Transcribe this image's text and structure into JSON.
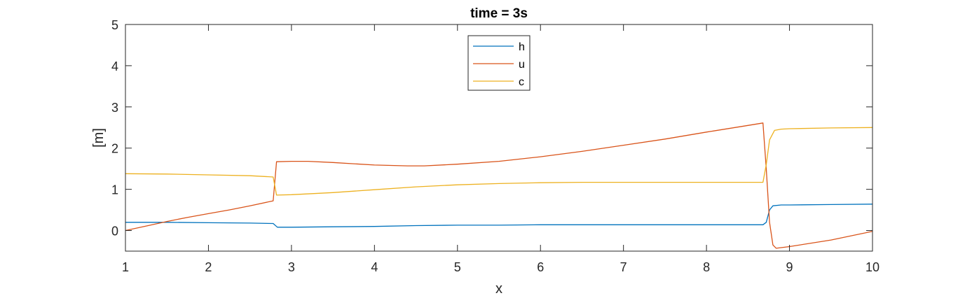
{
  "chart_data": {
    "type": "line",
    "title": "time = 3s",
    "xlabel": "x",
    "ylabel": "[m]",
    "xlim": [
      1,
      10
    ],
    "ylim": [
      -0.5,
      5
    ],
    "xticks": [
      1,
      2,
      3,
      4,
      5,
      6,
      7,
      8,
      9,
      10
    ],
    "yticks": [
      0,
      1,
      2,
      3,
      4,
      5
    ],
    "grid": false,
    "legend_position": "top-center",
    "series": [
      {
        "name": "h",
        "color": "#0072BD",
        "points": [
          [
            1,
            0.2
          ],
          [
            1.5,
            0.2
          ],
          [
            2,
            0.19
          ],
          [
            2.5,
            0.18
          ],
          [
            2.78,
            0.17
          ],
          [
            2.83,
            0.08
          ],
          [
            3,
            0.08
          ],
          [
            3.5,
            0.09
          ],
          [
            4,
            0.1
          ],
          [
            4.5,
            0.12
          ],
          [
            5,
            0.13
          ],
          [
            5.5,
            0.13
          ],
          [
            6,
            0.14
          ],
          [
            7,
            0.14
          ],
          [
            8,
            0.14
          ],
          [
            8.68,
            0.14
          ],
          [
            8.72,
            0.2
          ],
          [
            8.76,
            0.5
          ],
          [
            8.8,
            0.6
          ],
          [
            8.9,
            0.62
          ],
          [
            9,
            0.62
          ],
          [
            9.5,
            0.63
          ],
          [
            10,
            0.64
          ]
        ]
      },
      {
        "name": "u",
        "color": "#D95319",
        "points": [
          [
            1,
            0.0
          ],
          [
            1.25,
            0.11
          ],
          [
            1.5,
            0.22
          ],
          [
            1.75,
            0.32
          ],
          [
            2,
            0.41
          ],
          [
            2.25,
            0.5
          ],
          [
            2.5,
            0.6
          ],
          [
            2.78,
            0.72
          ],
          [
            2.82,
            1.67
          ],
          [
            3,
            1.68
          ],
          [
            3.2,
            1.68
          ],
          [
            3.5,
            1.65
          ],
          [
            3.75,
            1.62
          ],
          [
            4,
            1.59
          ],
          [
            4.4,
            1.57
          ],
          [
            4.6,
            1.57
          ],
          [
            5,
            1.61
          ],
          [
            5.5,
            1.68
          ],
          [
            6,
            1.79
          ],
          [
            6.5,
            1.92
          ],
          [
            7,
            2.07
          ],
          [
            7.5,
            2.22
          ],
          [
            8,
            2.39
          ],
          [
            8.5,
            2.55
          ],
          [
            8.68,
            2.61
          ],
          [
            8.72,
            1.5
          ],
          [
            8.76,
            0.2
          ],
          [
            8.8,
            -0.35
          ],
          [
            8.84,
            -0.43
          ],
          [
            9,
            -0.39
          ],
          [
            9.5,
            -0.23
          ],
          [
            10,
            -0.02
          ]
        ]
      },
      {
        "name": "c",
        "color": "#EDB120",
        "points": [
          [
            1,
            1.38
          ],
          [
            1.5,
            1.37
          ],
          [
            2,
            1.35
          ],
          [
            2.5,
            1.33
          ],
          [
            2.78,
            1.3
          ],
          [
            2.82,
            0.86
          ],
          [
            3,
            0.87
          ],
          [
            3.5,
            0.92
          ],
          [
            4,
            0.99
          ],
          [
            4.5,
            1.06
          ],
          [
            5,
            1.11
          ],
          [
            5.5,
            1.14
          ],
          [
            6,
            1.16
          ],
          [
            6.5,
            1.17
          ],
          [
            7,
            1.17
          ],
          [
            7.5,
            1.17
          ],
          [
            8,
            1.17
          ],
          [
            8.68,
            1.17
          ],
          [
            8.72,
            1.6
          ],
          [
            8.76,
            2.2
          ],
          [
            8.82,
            2.43
          ],
          [
            8.9,
            2.46
          ],
          [
            9,
            2.47
          ],
          [
            9.5,
            2.49
          ],
          [
            10,
            2.5
          ]
        ]
      }
    ]
  }
}
